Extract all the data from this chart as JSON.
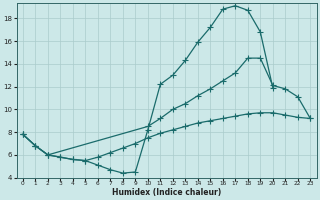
{
  "xlabel": "Humidex (Indice chaleur)",
  "bg_color": "#cce8e8",
  "grid_color": "#aacccc",
  "line_color": "#1a6b6b",
  "x_min": 0,
  "x_max": 23,
  "y_min": 4,
  "y_max": 19,
  "yticks": [
    4,
    6,
    8,
    10,
    12,
    14,
    16,
    18
  ],
  "line1_x": [
    0,
    1,
    2,
    3,
    4,
    5,
    6,
    7,
    8,
    9,
    10,
    11,
    12,
    13,
    14,
    15,
    16,
    17,
    18,
    19,
    20
  ],
  "line1_y": [
    7.8,
    6.8,
    6.0,
    5.8,
    5.6,
    5.5,
    5.1,
    4.7,
    4.4,
    4.5,
    8.2,
    12.2,
    13.0,
    14.3,
    15.9,
    17.2,
    18.8,
    19.1,
    18.7,
    16.8,
    11.9
  ],
  "line2_x": [
    0,
    1,
    2,
    10,
    11,
    12,
    13,
    14,
    15,
    16,
    17,
    18,
    19,
    20,
    21,
    22,
    23
  ],
  "line2_y": [
    7.8,
    6.8,
    6.0,
    8.5,
    9.2,
    10.0,
    10.5,
    11.2,
    11.8,
    12.5,
    13.2,
    14.5,
    14.5,
    12.1,
    11.8,
    11.1,
    9.2
  ],
  "line3_x": [
    0,
    1,
    2,
    3,
    4,
    5,
    6,
    7,
    8,
    9,
    10,
    11,
    12,
    13,
    14,
    15,
    16,
    17,
    18,
    19,
    20,
    21,
    22,
    23
  ],
  "line3_y": [
    7.8,
    6.8,
    6.0,
    5.8,
    5.6,
    5.5,
    5.8,
    6.2,
    6.6,
    7.0,
    7.5,
    7.9,
    8.2,
    8.5,
    8.8,
    9.0,
    9.2,
    9.4,
    9.6,
    9.7,
    9.7,
    9.5,
    9.3,
    9.2
  ]
}
